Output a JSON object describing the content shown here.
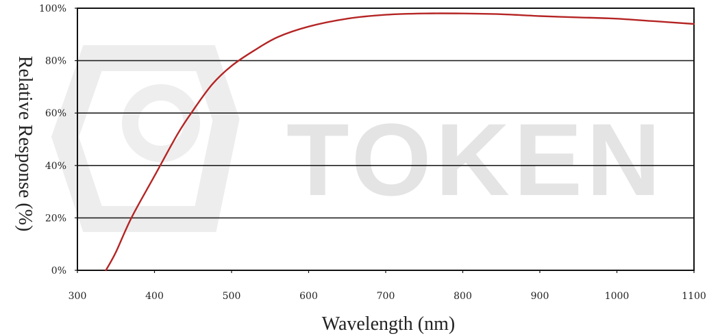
{
  "watermark": {
    "text": "TOKEN"
  },
  "colors": {
    "curve": "#b52424",
    "grid": "#222222",
    "frame": "#111111",
    "watermark": "#dcdcdc"
  },
  "chart_data": {
    "type": "line",
    "title": "",
    "xlabel": "Wavelength (nm)",
    "ylabel": "Relative Response (%)",
    "xlim": [
      300,
      1100
    ],
    "ylim": [
      0,
      100
    ],
    "x_ticks": [
      300,
      400,
      500,
      600,
      700,
      800,
      900,
      1000,
      1100
    ],
    "y_ticks": [
      0,
      20,
      40,
      60,
      80,
      100
    ],
    "x_tick_labels": [
      "300",
      "400",
      "500",
      "600",
      "700",
      "800",
      "900",
      "1000",
      "1100"
    ],
    "y_tick_labels": [
      "0%",
      "20%",
      "40%",
      "60%",
      "80%",
      "100%"
    ],
    "grid": "horizontal",
    "legend": "none",
    "series": [
      {
        "x": [
          337,
          350,
          370,
          400,
          430,
          450,
          475,
          500,
          530,
          560,
          600,
          650,
          700,
          750,
          800,
          850,
          900,
          950,
          1000,
          1050,
          1100
        ],
        "y": [
          0,
          7,
          20,
          36,
          52,
          61,
          71,
          78,
          84,
          89,
          93,
          96,
          97.5,
          98,
          98,
          97.7,
          97,
          96.5,
          96,
          95,
          94
        ]
      }
    ]
  }
}
